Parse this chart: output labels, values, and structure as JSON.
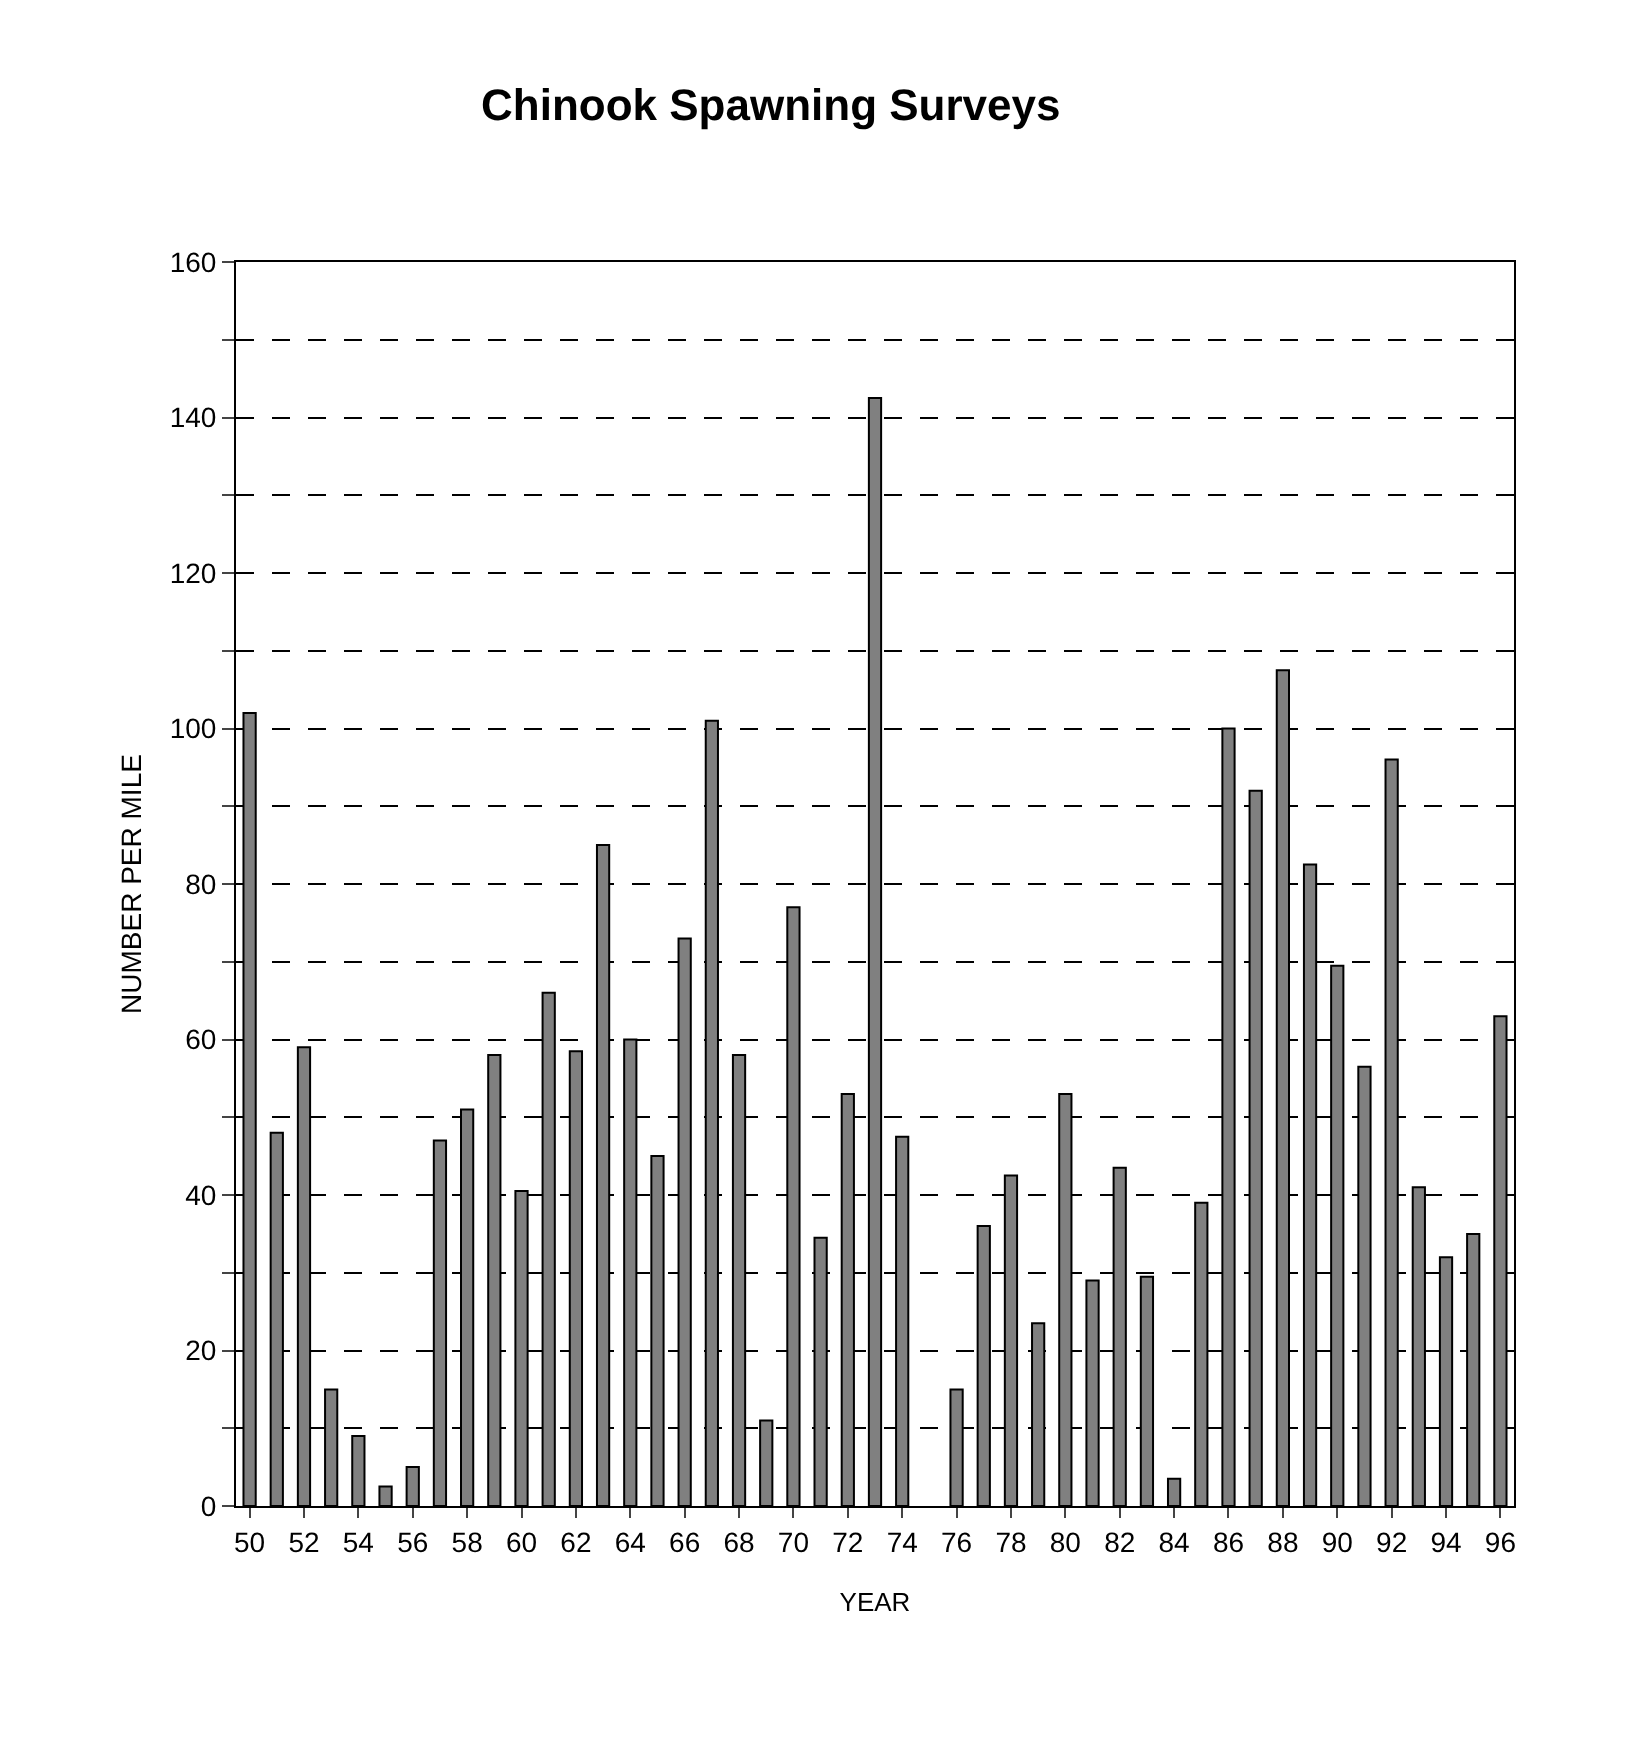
{
  "chart_data": {
    "type": "bar",
    "title": "Chinook Spawning Surveys",
    "xlabel": "YEAR",
    "ylabel": "NUMBER PER MILE",
    "categories": [
      "50",
      null,
      "52",
      null,
      "54",
      null,
      "56",
      null,
      "58",
      null,
      "60",
      null,
      "62",
      null,
      "64",
      null,
      "66",
      null,
      "68",
      null,
      "70",
      null,
      "72",
      null,
      "74",
      null,
      "76",
      null,
      "78",
      null,
      "80",
      null,
      "82",
      null,
      "84",
      null,
      "86",
      null,
      "88",
      null,
      "90",
      null,
      "92",
      null,
      "94",
      null,
      "96"
    ],
    "values": [
      102,
      48,
      59,
      15,
      9,
      2.5,
      5,
      47,
      51,
      58,
      40.5,
      66,
      58.5,
      85,
      60,
      45,
      73,
      101,
      58,
      11,
      77,
      34.5,
      53,
      142.5,
      47.5,
      null,
      15,
      36,
      42.5,
      23.5,
      53,
      29,
      43.5,
      29.5,
      3.5,
      39,
      100,
      92,
      107.5,
      82.5,
      69.5,
      56.5,
      96,
      41,
      32,
      35,
      63
    ],
    "color": "#808080",
    "ylim": [
      0,
      160
    ],
    "yticks": [
      0,
      {
        "value": 10,
        "label": null
      },
      20,
      {
        "value": 30,
        "label": null
      },
      40,
      {
        "value": 50,
        "label": null
      },
      60,
      {
        "value": 70,
        "label": null
      },
      80,
      {
        "value": 90,
        "label": null
      },
      100,
      {
        "value": 110,
        "label": null
      },
      120,
      {
        "value": 130,
        "label": null
      },
      140,
      {
        "value": 150,
        "label": null
      },
      160
    ],
    "grid": "y"
  }
}
